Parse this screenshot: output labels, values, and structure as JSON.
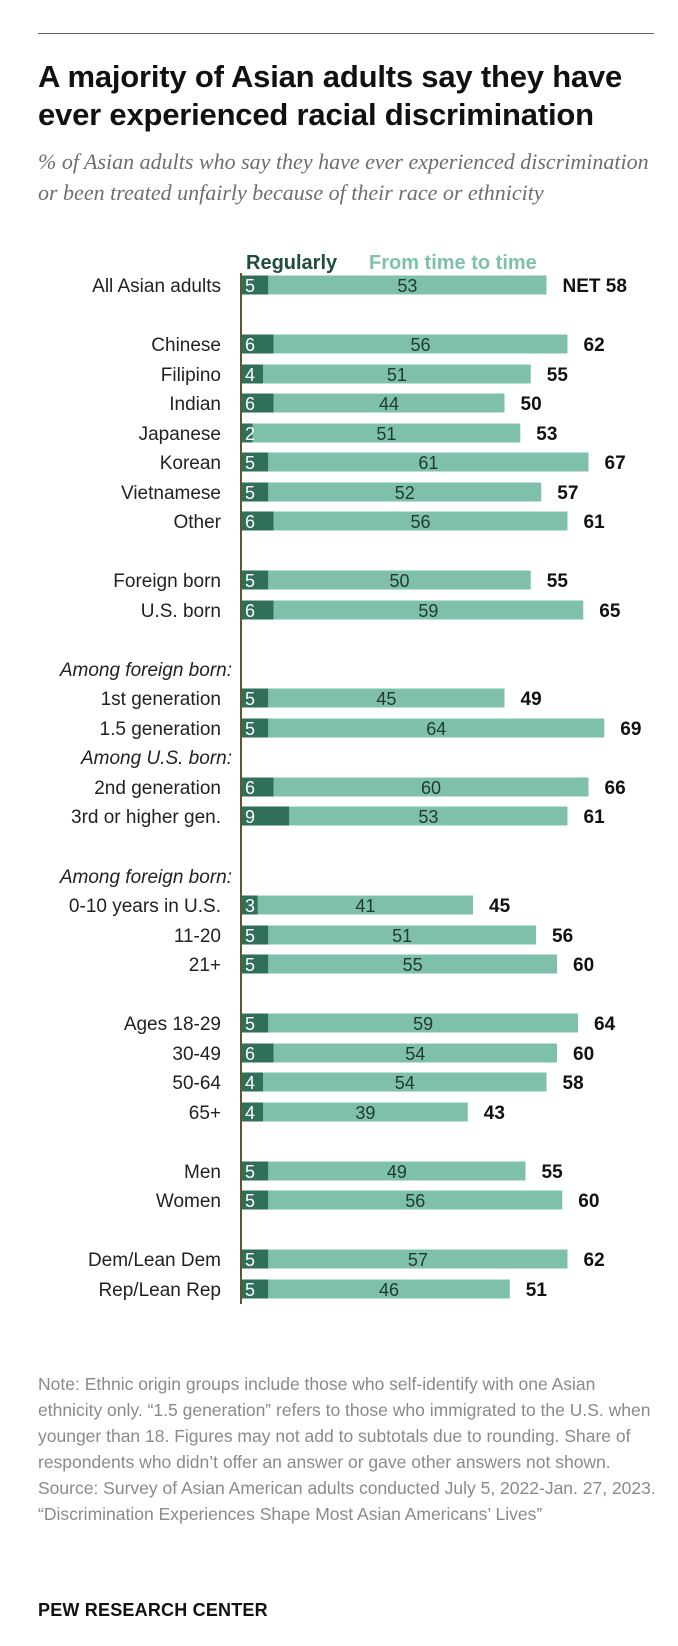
{
  "title": "A majority of Asian adults say they have ever experienced racial discrimination",
  "subtitle": "% of Asian adults who say they have ever experienced discrimination or been treated unfairly because of their race or ethnicity",
  "legend": {
    "regularly": "Regularly",
    "from_time_to_time": "From time to time"
  },
  "colors": {
    "regularly": "#2f6f5b",
    "from_time_to_time": "#7fc0ad",
    "axis": "#5a5a2a"
  },
  "chart_data": {
    "type": "bar",
    "orientation": "horizontal",
    "stacked": true,
    "title": "A majority of Asian adults say they have ever experienced racial discrimination",
    "series": [
      {
        "name": "Regularly",
        "values": [
          5,
          6,
          4,
          6,
          2,
          5,
          5,
          6,
          5,
          6,
          5,
          5,
          6,
          9,
          3,
          5,
          5,
          5,
          6,
          4,
          4,
          5,
          5,
          5,
          5
        ]
      },
      {
        "name": "From time to time",
        "values": [
          53,
          56,
          51,
          44,
          51,
          61,
          52,
          56,
          50,
          59,
          45,
          64,
          60,
          53,
          41,
          51,
          55,
          59,
          54,
          54,
          39,
          49,
          56,
          57,
          46
        ]
      }
    ],
    "categories": [
      "All Asian adults",
      "Chinese",
      "Filipino",
      "Indian",
      "Japanese",
      "Korean",
      "Vietnamese",
      "Other",
      "Foreign born",
      "U.S. born",
      "1st generation",
      "1.5 generation",
      "2nd generation",
      "3rd or higher gen.",
      "0-10 years in U.S.",
      "11-20",
      "21+",
      "Ages 18-29",
      "30-49",
      "50-64",
      "65+",
      "Men",
      "Women",
      "Dem/Lean Dem",
      "Rep/Lean Rep"
    ],
    "net": [
      58,
      62,
      55,
      50,
      53,
      67,
      57,
      61,
      55,
      65,
      49,
      69,
      66,
      61,
      45,
      56,
      60,
      64,
      60,
      58,
      43,
      55,
      60,
      62,
      51
    ],
    "net_prefix": "NET ",
    "net_prefix_on": "All Asian adults",
    "subheads": [
      {
        "text": "Among foreign born:",
        "before": "1st generation"
      },
      {
        "text": "Among U.S. born:",
        "before": "2nd generation"
      },
      {
        "text": "Among foreign born:",
        "before": "0-10 years in U.S."
      }
    ]
  },
  "note": "Note: Ethnic origin groups include those who self-identify with one Asian ethnicity only. “1.5 generation” refers to those who immigrated to the U.S. when younger than 18. Figures may not add to subtotals due to rounding. Share of respondents who didn’t offer an answer or gave other answers not shown.",
  "source": "Source: Survey of Asian American adults conducted July 5, 2022-Jan. 27, 2023.",
  "report": "“Discrimination Experiences Shape Most Asian Americans’ Lives”",
  "brand": "PEW RESEARCH CENTER"
}
